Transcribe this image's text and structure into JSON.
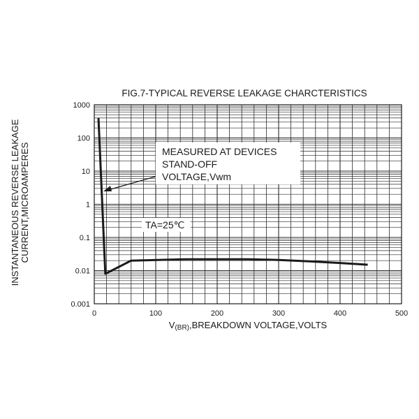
{
  "chart_data": {
    "type": "line",
    "title": "FIG.7-TYPICAL REVERSE LEAKAGE CHARCTERISTICS",
    "xlabel_prefix": "V",
    "xlabel_sub": "(BR)",
    "xlabel_rest": ",BREAKDOWN VOLTAGE,VOLTS",
    "ylabel_line1": "INSTANTANEOUS REVERSE LEAKAGE",
    "ylabel_line2": "CURRENT,MICROAMPERES",
    "x_ticks": [
      "0",
      "100",
      "200",
      "300",
      "400",
      "500"
    ],
    "y_ticks": [
      "1000",
      "100",
      "10",
      "1",
      "0.1",
      "0.01",
      "0.001"
    ],
    "xlim": [
      0,
      500
    ],
    "ylim": [
      0.001,
      1000
    ],
    "y_scale": "log",
    "grid": true,
    "annotation_lines": [
      "MEASURED AT DEVICES",
      "STAND-OFF",
      "VOLTAGE,Vwm"
    ],
    "ta_label": "TA=25℃",
    "series": [
      {
        "x": [
          6.8,
          18,
          60,
          150,
          200,
          250,
          300,
          350,
          400,
          445
        ],
        "y": [
          400,
          0.008,
          0.02,
          0.022,
          0.022,
          0.022,
          0.021,
          0.019,
          0.017,
          0.015
        ]
      }
    ]
  }
}
